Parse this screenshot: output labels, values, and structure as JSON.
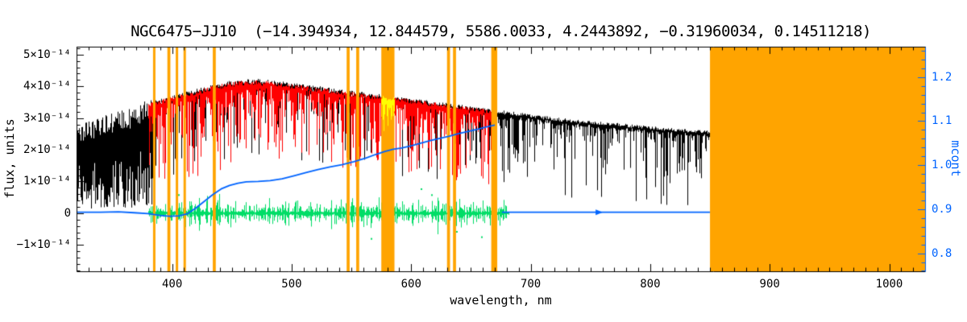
{
  "chart_data": {
    "type": "line",
    "title": "NGC6475−JJ10  (−14.394934, 12.844579, 5586.0033, 4.2443892, −0.31960034, 0.14511218)",
    "xlabel": "wavelength, nm",
    "ylabel_left": "flux, units",
    "ylabel_right": "mcont",
    "x_range": [
      320,
      1030
    ],
    "y_left_range_1e14": [
      -1.83,
      5.25
    ],
    "y_right_range": [
      0.759,
      1.269
    ],
    "x_ticks": [
      400,
      500,
      600,
      700,
      800,
      900,
      1000
    ],
    "y_left_ticks": [
      {
        "value": 5,
        "label": "5×10⁻¹⁴"
      },
      {
        "value": 4,
        "label": "4×10⁻¹⁴"
      },
      {
        "value": 3,
        "label": "3×10⁻¹⁴"
      },
      {
        "value": 2,
        "label": "2×10⁻¹⁴"
      },
      {
        "value": 1,
        "label": "1×10⁻¹⁴"
      },
      {
        "value": 0,
        "label": "0"
      },
      {
        "value": -1,
        "label": "−1×10⁻¹⁴"
      }
    ],
    "y_right_ticks": [
      "1.2",
      "1.1",
      "1.0",
      "0.9",
      "0.8"
    ],
    "colors": {
      "background": "#ffffff",
      "axis": "#000000",
      "observed": "#000000",
      "model_fit": "#ff0000",
      "masked_fit": "#ffff00",
      "residuals": "#00dd66",
      "continuum": "#0064ff",
      "mask": "#ffa400"
    },
    "mask_regions_nm": [
      [
        384,
        386
      ],
      [
        396,
        398.5
      ],
      [
        403,
        405
      ],
      [
        409.5,
        411.5
      ],
      [
        434,
        436.5
      ],
      [
        546,
        548.5
      ],
      [
        554,
        556.5
      ],
      [
        575,
        586
      ],
      [
        630,
        632.5
      ],
      [
        635,
        637.5
      ],
      [
        667,
        672
      ],
      [
        850,
        1030
      ]
    ],
    "series": [
      {
        "name": "observed spectrum",
        "color": "#000000",
        "x_start_nm": 320,
        "x_end_nm": 855,
        "upper_envelope_1e14": [
          [
            320,
            2.7
          ],
          [
            340,
            3.0
          ],
          [
            360,
            3.25
          ],
          [
            380,
            3.5
          ],
          [
            400,
            3.7
          ],
          [
            420,
            3.9
          ],
          [
            440,
            4.1
          ],
          [
            455,
            4.2
          ],
          [
            470,
            4.22
          ],
          [
            490,
            4.15
          ],
          [
            510,
            4.05
          ],
          [
            530,
            3.95
          ],
          [
            550,
            3.85
          ],
          [
            570,
            3.75
          ],
          [
            590,
            3.66
          ],
          [
            610,
            3.56
          ],
          [
            630,
            3.46
          ],
          [
            650,
            3.36
          ],
          [
            670,
            3.26
          ],
          [
            690,
            3.16
          ],
          [
            710,
            3.06
          ],
          [
            730,
            2.97
          ],
          [
            750,
            2.9
          ],
          [
            770,
            2.84
          ],
          [
            790,
            2.77
          ],
          [
            810,
            2.7
          ],
          [
            830,
            2.64
          ],
          [
            855,
            2.57
          ]
        ],
        "telluric_dips_nm": [
          687,
          719,
          761,
          823,
          840
        ]
      },
      {
        "name": "model fit",
        "color": "#ff0000",
        "x_start_nm": 380,
        "x_end_nm": 670
      },
      {
        "name": "masked fit segment",
        "color": "#ffff00",
        "x_start_nm": 575,
        "x_end_nm": 586
      },
      {
        "name": "fit residuals",
        "color": "#00dd66",
        "x_start_nm": 380,
        "x_end_nm": 682,
        "center_1e14": 0,
        "typ_amplitude_1e14": 0.35
      },
      {
        "name": "mcont continuum ratio",
        "color": "#0064ff",
        "points": [
          [
            320,
            0.893
          ],
          [
            340,
            0.893
          ],
          [
            355,
            0.894
          ],
          [
            368,
            0.892
          ],
          [
            380,
            0.89
          ],
          [
            390,
            0.886
          ],
          [
            398,
            0.884
          ],
          [
            406,
            0.885
          ],
          [
            413,
            0.89
          ],
          [
            420,
            0.903
          ],
          [
            427,
            0.918
          ],
          [
            434,
            0.933
          ],
          [
            441,
            0.946
          ],
          [
            448,
            0.954
          ],
          [
            455,
            0.959
          ],
          [
            462,
            0.962
          ],
          [
            472,
            0.963
          ],
          [
            482,
            0.965
          ],
          [
            492,
            0.969
          ],
          [
            502,
            0.976
          ],
          [
            512,
            0.983
          ],
          [
            522,
            0.99
          ],
          [
            532,
            0.996
          ],
          [
            542,
            1.001
          ],
          [
            552,
            1.008
          ],
          [
            562,
            1.016
          ],
          [
            570,
            1.024
          ],
          [
            578,
            1.031
          ],
          [
            585,
            1.036
          ],
          [
            592,
            1.039
          ],
          [
            600,
            1.044
          ],
          [
            608,
            1.05
          ],
          [
            616,
            1.056
          ],
          [
            624,
            1.061
          ],
          [
            632,
            1.066
          ],
          [
            640,
            1.072
          ],
          [
            648,
            1.077
          ],
          [
            656,
            1.082
          ],
          [
            663,
            1.087
          ],
          [
            670,
            1.091
          ]
        ],
        "flat_segment": {
          "x_start_nm": 676,
          "x_end_nm": 850,
          "value": 0.893
        },
        "arrow_nm": 757
      }
    ]
  }
}
